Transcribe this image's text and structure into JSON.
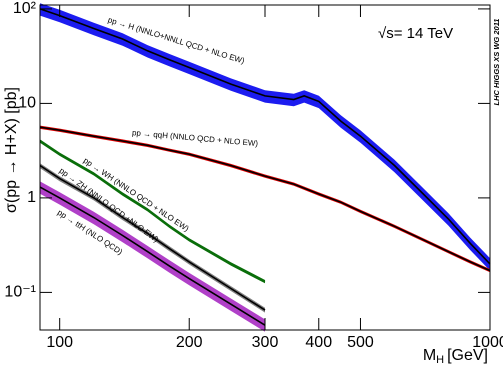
{
  "chart_data": {
    "type": "line",
    "log_x": true,
    "log_y": true,
    "ylabel": "σ(pp → H+X) [pb]",
    "xlabel": "M",
    "xlabel_sub": "H",
    "xlabel_unit": "[GeV]",
    "annotations": [
      "√s= 14 TeV",
      "LHC HIGGS XS WG 2011"
    ],
    "xlim": [
      90,
      1000
    ],
    "xticks": [
      100,
      200,
      300,
      400,
      500,
      1000
    ],
    "ylim": [
      0.04,
      110
    ],
    "yticks": [
      {
        "value": 100,
        "label": "10²"
      },
      10,
      1,
      {
        "value": 0.1,
        "label": "10⁻¹"
      }
    ],
    "series": [
      {
        "name": "pp → H (NNLO+NNLL QCD + NLO EW)",
        "color": "#1c1cf0",
        "line_color": "#000000",
        "band_percent": 15,
        "x": [
          90,
          100,
          120,
          140,
          160,
          180,
          200,
          250,
          300,
          350,
          370,
          400,
          450,
          500,
          600,
          700,
          800,
          900,
          1000
        ],
        "values": [
          100,
          85,
          62,
          48,
          36,
          29,
          24,
          16,
          12,
          11,
          12,
          10.5,
          6.5,
          4.5,
          2.2,
          1.1,
          0.6,
          0.33,
          0.2
        ]
      },
      {
        "name": "pp → qqH (NNLO QCD + NLO EW)",
        "color": "#e00000",
        "line_color": "#000000",
        "band_percent": 4,
        "x": [
          90,
          100,
          120,
          140,
          160,
          180,
          200,
          250,
          300,
          350,
          400,
          450,
          500,
          600,
          700,
          800,
          900,
          1000
        ],
        "values": [
          5.6,
          5.2,
          4.5,
          4.0,
          3.6,
          3.2,
          2.9,
          2.2,
          1.7,
          1.4,
          1.1,
          0.9,
          0.72,
          0.5,
          0.36,
          0.27,
          0.21,
          0.17
        ]
      },
      {
        "name": "pp → WH (NNLO QCD + NLO EW)",
        "color": "#0a6e0a",
        "line_color": "#0a6e0a",
        "band_percent": 4,
        "x": [
          90,
          100,
          120,
          140,
          160,
          180,
          200,
          250,
          300
        ],
        "values": [
          4.0,
          2.9,
          1.8,
          1.1,
          0.75,
          0.5,
          0.36,
          0.2,
          0.13
        ]
      },
      {
        "name": "pp → ZH (NNLO QCD +NLO EW)",
        "color": "#808080",
        "line_color": "#000000",
        "band_percent": 6,
        "x": [
          90,
          100,
          120,
          140,
          160,
          180,
          200,
          250,
          300
        ],
        "values": [
          2.2,
          1.6,
          1.0,
          0.62,
          0.42,
          0.29,
          0.21,
          0.11,
          0.065
        ]
      },
      {
        "name": "pp → ttH (NLO QCD)",
        "color": "#b040c8",
        "line_color": "#000000",
        "band_percent": 15,
        "x": [
          90,
          100,
          120,
          140,
          160,
          180,
          200,
          250,
          300
        ],
        "values": [
          1.3,
          1.0,
          0.62,
          0.4,
          0.27,
          0.19,
          0.14,
          0.075,
          0.045
        ]
      }
    ]
  }
}
